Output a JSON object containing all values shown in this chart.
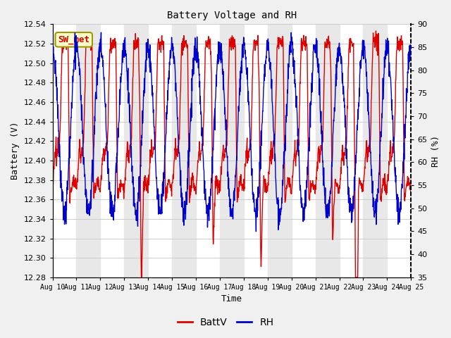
{
  "title": "Battery Voltage and RH",
  "xlabel": "Time",
  "ylabel_left": "Battery (V)",
  "ylabel_right": "RH (%)",
  "annotation": "SW_met",
  "ylim_left": [
    12.28,
    12.54
  ],
  "ylim_right": [
    35,
    90
  ],
  "yticks_left": [
    12.28,
    12.3,
    12.32,
    12.34,
    12.36,
    12.38,
    12.4,
    12.42,
    12.44,
    12.46,
    12.48,
    12.5,
    12.52,
    12.54
  ],
  "yticks_right": [
    35,
    40,
    45,
    50,
    55,
    60,
    65,
    70,
    75,
    80,
    85,
    90
  ],
  "xtick_labels": [
    "Aug 10",
    "Aug 11",
    "Aug 12",
    "Aug 13",
    "Aug 14",
    "Aug 15",
    "Aug 16",
    "Aug 17",
    "Aug 18",
    "Aug 19",
    "Aug 20",
    "Aug 21",
    "Aug 22",
    "Aug 23",
    "Aug 24",
    "Aug 25"
  ],
  "line_color_battv": "#dd0000",
  "line_color_rh": "#0000cc",
  "legend_labels": [
    "BattV",
    "RH"
  ],
  "plot_bg_color": "#ffffff",
  "stripe_color": "#e8e8e8",
  "grid_color": "#cccccc",
  "annotation_bg": "#ffffcc",
  "annotation_border": "#999900",
  "annotation_text_color": "#cc0000",
  "font_family": "DejaVu Sans Mono",
  "fig_facecolor": "#f0f0f0"
}
